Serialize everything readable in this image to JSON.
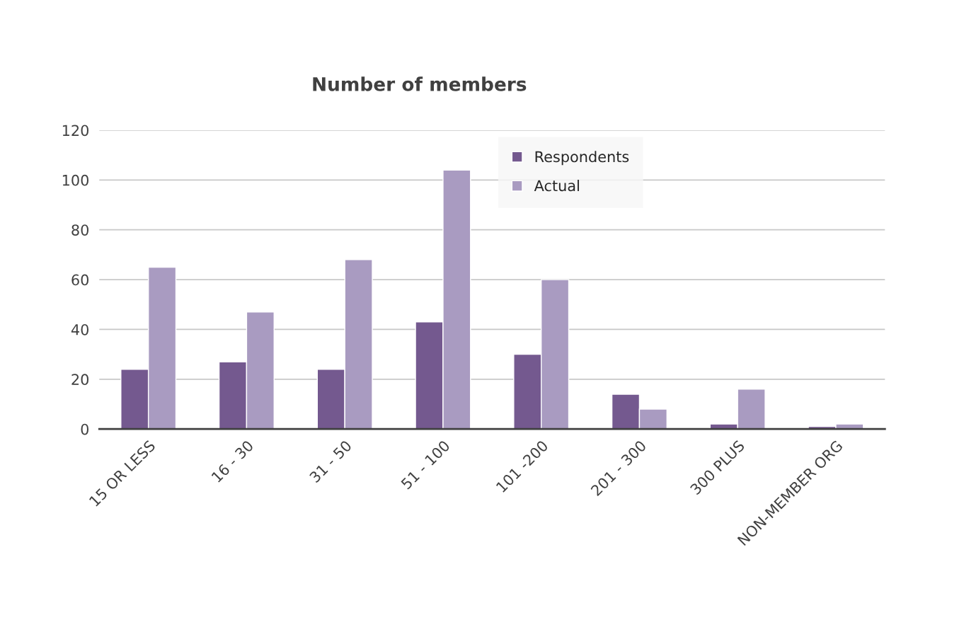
{
  "chart_data": {
    "type": "bar",
    "title": "Number of members",
    "categories": [
      "15 OR LESS",
      "16 - 30",
      "31 - 50",
      "51 - 100",
      "101 -200",
      "201 - 300",
      "300 PLUS",
      "NON-MEMBER ORG"
    ],
    "series": [
      {
        "name": "Respondents",
        "color": "#74598f",
        "values": [
          24,
          27,
          24,
          43,
          30,
          14,
          2,
          1
        ]
      },
      {
        "name": "Actual",
        "color": "#a99bc1",
        "values": [
          65,
          47,
          68,
          104,
          60,
          8,
          16,
          2
        ]
      }
    ],
    "ylim": [
      0,
      120
    ],
    "yticks": [
      0,
      20,
      40,
      60,
      80,
      100,
      120
    ],
    "grid": "y",
    "legend": "top"
  }
}
